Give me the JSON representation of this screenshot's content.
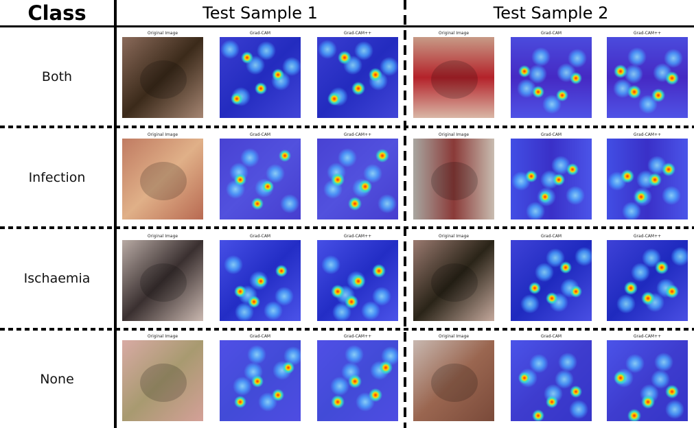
{
  "header": {
    "class_label": "Class",
    "sample1_label": "Test Sample 1",
    "sample2_label": "Test Sample 2"
  },
  "panel_captions": [
    "Original Image",
    "Grad-CAM",
    "Grad-CAM++"
  ],
  "rows": [
    {
      "label": "Both"
    },
    {
      "label": "Infection"
    },
    {
      "label": "Ischaemia"
    },
    {
      "label": "None"
    }
  ]
}
